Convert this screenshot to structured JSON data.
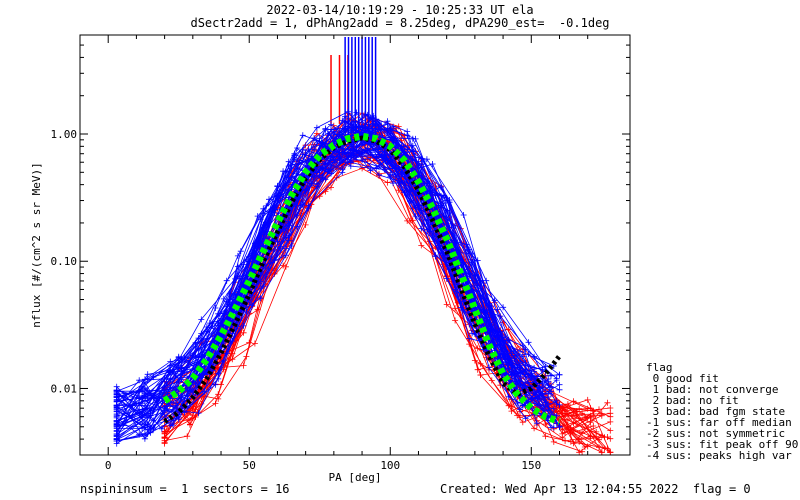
{
  "header": {
    "title_line1": "2022-03-14/10:19:29 - 10:25:33 UT ela",
    "title_line2": "dSectr2add = 1, dPhAng2add = 8.25deg, dPA290_est=  -0.1deg"
  },
  "footer": {
    "left": "nspininsum =  1  sectors = 16",
    "right": "Created: Wed Apr 13 12:04:55 2022  flag = 0"
  },
  "legend": {
    "title": "flag",
    "items": [
      " 0 good fit",
      " 1 bad: not converge",
      " 2 bad: no fit",
      " 3 bad: bad fgm state",
      "-1 sus: far off median",
      "-2 sus: not symmetric",
      "-3 sus: fit peak off 90",
      "-4 sus: peaks high var"
    ]
  },
  "colors": {
    "red_series": "#ff0000",
    "blue_series": "#0000ff",
    "fit_curve": "#00ff00",
    "black_curve": "#000000"
  },
  "chart_data": {
    "type": "line",
    "xlabel": "PA [deg]",
    "ylabel": "nflux [#/(cm^2 s sr MeV)]",
    "xlim": [
      -10,
      185
    ],
    "ylim": [
      0.003,
      6
    ],
    "yscale": "log",
    "xticks": [
      0,
      50,
      100,
      150
    ],
    "yticks": [
      {
        "value": 1.0,
        "label": "1.00"
      },
      {
        "value": 0.1,
        "label": "0.10"
      },
      {
        "value": 0.01,
        "label": "0.01"
      }
    ],
    "grid": false,
    "legend_position": "right-bottom",
    "series": [
      {
        "color": "red",
        "x": [
          20,
          30,
          40,
          50,
          60,
          70,
          80,
          90,
          100,
          110,
          120,
          130,
          140,
          150,
          160,
          170,
          178
        ],
        "y": [
          0.006,
          0.009,
          0.018,
          0.05,
          0.14,
          0.45,
          0.75,
          0.9,
          0.7,
          0.35,
          0.12,
          0.035,
          0.015,
          0.008,
          0.006,
          0.005,
          0.004
        ]
      },
      {
        "color": "blue",
        "x": [
          3,
          10,
          20,
          30,
          40,
          50,
          60,
          70,
          80,
          90,
          100,
          110,
          120,
          130,
          140,
          150,
          160
        ],
        "y": [
          0.006,
          0.0065,
          0.008,
          0.012,
          0.025,
          0.07,
          0.2,
          0.55,
          0.8,
          0.95,
          0.8,
          0.45,
          0.16,
          0.05,
          0.02,
          0.01,
          0.008
        ]
      },
      {
        "color": "green",
        "x": [
          20,
          25,
          30,
          35,
          40,
          45,
          50,
          55,
          60,
          65,
          70,
          75,
          80,
          85,
          90,
          95,
          100,
          105,
          110,
          115,
          120,
          125,
          130,
          135,
          140,
          145,
          150,
          155,
          160
        ],
        "y": [
          0.008,
          0.0095,
          0.012,
          0.017,
          0.026,
          0.042,
          0.07,
          0.12,
          0.2,
          0.33,
          0.5,
          0.68,
          0.82,
          0.92,
          0.96,
          0.92,
          0.8,
          0.62,
          0.42,
          0.26,
          0.15,
          0.08,
          0.042,
          0.022,
          0.013,
          0.009,
          0.007,
          0.006,
          0.0055
        ]
      },
      {
        "color": "black",
        "x": [
          20,
          25,
          30,
          35,
          40,
          45,
          50,
          55,
          60,
          65,
          70,
          75,
          80,
          85,
          90,
          95,
          100,
          105,
          110,
          115,
          120,
          125,
          130,
          135,
          140,
          145,
          150,
          155,
          160
        ],
        "y": [
          0.0055,
          0.0065,
          0.0085,
          0.012,
          0.019,
          0.032,
          0.055,
          0.1,
          0.17,
          0.29,
          0.45,
          0.63,
          0.78,
          0.88,
          0.93,
          0.88,
          0.75,
          0.55,
          0.36,
          0.21,
          0.12,
          0.062,
          0.032,
          0.018,
          0.011,
          0.009,
          0.01,
          0.013,
          0.018
        ]
      }
    ]
  }
}
